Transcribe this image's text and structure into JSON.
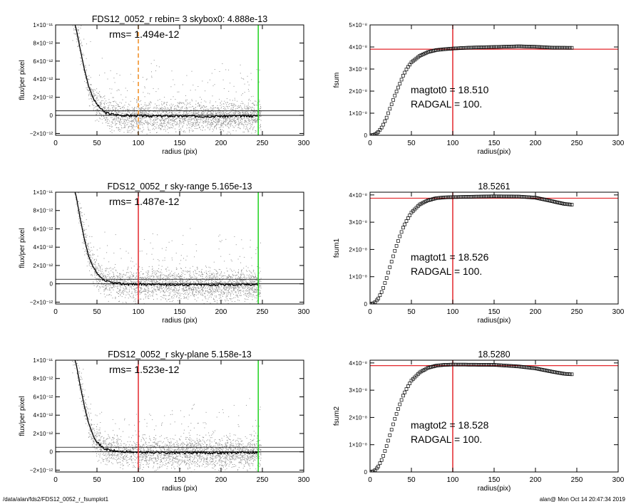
{
  "footer": {
    "path": "/data/alan/fds2/FDS12_0052_r_fsumplot1",
    "stamp": "alan@  Mon Oct 14 20:47:34 2019"
  },
  "colors": {
    "red": "#e3262b",
    "green": "#1fd21f",
    "orange": "#f08c1e",
    "scatter": "#8f8f8f"
  },
  "chart_data": [
    {
      "type": "scatter",
      "title": "FDS12_0052_r rebin= 3    skybox0:  4.888e-13",
      "annotation": "rms= 1.494e-12",
      "xlabel": "radius (pix)",
      "ylabel": "flux/per pixel",
      "xlim": [
        0,
        300
      ],
      "ylim": [
        -2.2e-12,
        1e-11
      ],
      "xticks": [
        "0",
        "50",
        "100",
        "150",
        "200",
        "250",
        "300"
      ],
      "yticks": [
        {
          "v": 1e-11,
          "label": "1×10⁻¹¹"
        },
        {
          "v": 8e-12,
          "label": "8×10⁻¹²"
        },
        {
          "v": 6e-12,
          "label": "6×10⁻¹²"
        },
        {
          "v": 4e-12,
          "label": "4×10⁻¹²"
        },
        {
          "v": 2e-12,
          "label": "2×10⁻¹²"
        },
        {
          "v": 0,
          "label": "0"
        },
        {
          "v": -2e-12,
          "label": "−2×10⁻¹²"
        }
      ],
      "vlines": [
        {
          "x": 100,
          "color": "orange",
          "dashed": true
        },
        {
          "x": 245,
          "color": "green"
        }
      ],
      "hlines": [
        0,
        5e-13
      ],
      "profile": [
        [
          22,
          1.05e-11
        ],
        [
          25,
          9.5e-12
        ],
        [
          30,
          7.2e-12
        ],
        [
          35,
          5e-12
        ],
        [
          40,
          3.2e-12
        ],
        [
          45,
          2e-12
        ],
        [
          50,
          1.2e-12
        ],
        [
          55,
          7e-13
        ],
        [
          60,
          3e-13
        ],
        [
          70,
          1e-13
        ],
        [
          80,
          0
        ],
        [
          100,
          -5e-14
        ],
        [
          150,
          -1e-13
        ],
        [
          200,
          -1e-13
        ],
        [
          245,
          -5e-14
        ]
      ]
    },
    {
      "type": "line",
      "title": "",
      "xlabel": "radius(pix)",
      "ylabel": "fsum",
      "annotations": [
        "magtot0 =  18.510",
        "RADGAL =    100."
      ],
      "xlim": [
        0,
        300
      ],
      "ylim": [
        0,
        5e-08
      ],
      "xticks": [
        "0",
        "50",
        "100",
        "150",
        "200",
        "250",
        "300"
      ],
      "yticks": [
        {
          "v": 0,
          "label": "0"
        },
        {
          "v": 1e-08,
          "label": "1×10⁻⁸"
        },
        {
          "v": 2e-08,
          "label": "2×10⁻⁸"
        },
        {
          "v": 3e-08,
          "label": "3×10⁻⁸"
        },
        {
          "v": 4e-08,
          "label": "4×10⁻⁸"
        },
        {
          "v": 5e-08,
          "label": "5×10⁻⁸"
        }
      ],
      "vline": 100,
      "hline": 3.9e-08,
      "curve": [
        [
          0,
          0
        ],
        [
          5,
          2e-10
        ],
        [
          10,
          1.5e-09
        ],
        [
          15,
          4e-09
        ],
        [
          20,
          8e-09
        ],
        [
          25,
          1.3e-08
        ],
        [
          30,
          1.8e-08
        ],
        [
          35,
          2.25e-08
        ],
        [
          40,
          2.7e-08
        ],
        [
          45,
          3.05e-08
        ],
        [
          50,
          3.3e-08
        ],
        [
          60,
          3.6e-08
        ],
        [
          70,
          3.77e-08
        ],
        [
          80,
          3.86e-08
        ],
        [
          90,
          3.9e-08
        ],
        [
          100,
          3.93e-08
        ],
        [
          120,
          3.97e-08
        ],
        [
          150,
          4e-08
        ],
        [
          180,
          4.03e-08
        ],
        [
          200,
          4.01e-08
        ],
        [
          220,
          3.97e-08
        ],
        [
          245,
          3.96e-08
        ]
      ]
    },
    {
      "type": "scatter",
      "title": "FDS12_0052_r sky-range  5.165e-13",
      "annotation": "rms= 1.487e-12",
      "xlabel": "radius (pix)",
      "ylabel": "flux/per pixel",
      "xlim": [
        0,
        300
      ],
      "ylim": [
        -2.2e-12,
        1e-11
      ],
      "xticks": [
        "0",
        "50",
        "100",
        "150",
        "200",
        "250",
        "300"
      ],
      "yticks": [
        {
          "v": 1e-11,
          "label": "1×10⁻¹¹"
        },
        {
          "v": 8e-12,
          "label": "8×10⁻¹²"
        },
        {
          "v": 6e-12,
          "label": "6×10⁻¹²"
        },
        {
          "v": 4e-12,
          "label": "4×10⁻¹²"
        },
        {
          "v": 2e-12,
          "label": "2×10⁻¹²"
        },
        {
          "v": 0,
          "label": "0"
        },
        {
          "v": -2e-12,
          "label": "−2×10⁻¹²"
        }
      ],
      "vlines": [
        {
          "x": 100,
          "color": "red"
        },
        {
          "x": 245,
          "color": "green"
        }
      ],
      "hlines": [
        0,
        5e-13
      ],
      "profile": [
        [
          22,
          1.05e-11
        ],
        [
          25,
          9.5e-12
        ],
        [
          30,
          7e-12
        ],
        [
          35,
          4.8e-12
        ],
        [
          40,
          3e-12
        ],
        [
          45,
          1.9e-12
        ],
        [
          50,
          1.1e-12
        ],
        [
          55,
          6e-13
        ],
        [
          60,
          3e-13
        ],
        [
          70,
          1e-13
        ],
        [
          80,
          0
        ],
        [
          100,
          -5e-14
        ],
        [
          150,
          -1e-13
        ],
        [
          200,
          -1e-13
        ],
        [
          245,
          -5e-14
        ]
      ]
    },
    {
      "type": "line",
      "title": "18.5261",
      "xlabel": "radius(pix)",
      "ylabel": "fsum1",
      "annotations": [
        "magtot1 =  18.526",
        "RADGAL =    100."
      ],
      "xlim": [
        0,
        300
      ],
      "ylim": [
        0,
        4.1e-08
      ],
      "xticks": [
        "0",
        "50",
        "100",
        "150",
        "200",
        "250",
        "300"
      ],
      "yticks": [
        {
          "v": 0,
          "label": "0"
        },
        {
          "v": 1e-08,
          "label": "1×10⁻⁸"
        },
        {
          "v": 2e-08,
          "label": "2×10⁻⁸"
        },
        {
          "v": 3e-08,
          "label": "3×10⁻⁸"
        },
        {
          "v": 4e-08,
          "label": "4×10⁻⁸"
        }
      ],
      "vline": 100,
      "hline": 3.88e-08,
      "curve": [
        [
          0,
          0
        ],
        [
          5,
          3e-10
        ],
        [
          10,
          2e-09
        ],
        [
          15,
          5e-09
        ],
        [
          20,
          9.5e-09
        ],
        [
          25,
          1.45e-08
        ],
        [
          30,
          1.95e-08
        ],
        [
          35,
          2.4e-08
        ],
        [
          40,
          2.8e-08
        ],
        [
          45,
          3.1e-08
        ],
        [
          50,
          3.35e-08
        ],
        [
          60,
          3.65e-08
        ],
        [
          70,
          3.8e-08
        ],
        [
          80,
          3.88e-08
        ],
        [
          90,
          3.91e-08
        ],
        [
          100,
          3.92e-08
        ],
        [
          150,
          3.95e-08
        ],
        [
          180,
          3.94e-08
        ],
        [
          200,
          3.9e-08
        ],
        [
          220,
          3.77e-08
        ],
        [
          235,
          3.67e-08
        ],
        [
          245,
          3.64e-08
        ]
      ]
    },
    {
      "type": "scatter",
      "title": "FDS12_0052_r sky-plane  5.158e-13",
      "annotation": "rms= 1.523e-12",
      "xlabel": "radius (pix)",
      "ylabel": "flux/per pixel",
      "xlim": [
        0,
        300
      ],
      "ylim": [
        -2.2e-12,
        1e-11
      ],
      "xticks": [
        "0",
        "50",
        "100",
        "150",
        "200",
        "250",
        "300"
      ],
      "yticks": [
        {
          "v": 1e-11,
          "label": "1×10⁻¹¹"
        },
        {
          "v": 8e-12,
          "label": "8×10⁻¹²"
        },
        {
          "v": 6e-12,
          "label": "6×10⁻¹²"
        },
        {
          "v": 4e-12,
          "label": "4×10⁻¹²"
        },
        {
          "v": 2e-12,
          "label": "2×10⁻¹²"
        },
        {
          "v": 0,
          "label": "0"
        },
        {
          "v": -2e-12,
          "label": "−2×10⁻¹²"
        }
      ],
      "vlines": [
        {
          "x": 100,
          "color": "red"
        },
        {
          "x": 245,
          "color": "green"
        }
      ],
      "hlines": [
        0,
        5e-13
      ],
      "profile": [
        [
          22,
          1.05e-11
        ],
        [
          25,
          9.5e-12
        ],
        [
          30,
          7.1e-12
        ],
        [
          35,
          4.9e-12
        ],
        [
          40,
          3.1e-12
        ],
        [
          45,
          1.9e-12
        ],
        [
          50,
          1.1e-12
        ],
        [
          55,
          6e-13
        ],
        [
          60,
          3e-13
        ],
        [
          70,
          1e-13
        ],
        [
          80,
          0
        ],
        [
          100,
          -5e-14
        ],
        [
          150,
          -1e-13
        ],
        [
          200,
          -1e-13
        ],
        [
          245,
          -5e-14
        ]
      ]
    },
    {
      "type": "line",
      "title": "18.5280",
      "xlabel": "radius(pix)",
      "ylabel": "fsum2",
      "annotations": [
        "magtot2 =  18.528",
        "RADGAL =    100."
      ],
      "xlim": [
        0,
        300
      ],
      "ylim": [
        0,
        4.1e-08
      ],
      "xticks": [
        "0",
        "50",
        "100",
        "150",
        "200",
        "250",
        "300"
      ],
      "yticks": [
        {
          "v": 0,
          "label": "0"
        },
        {
          "v": 1e-08,
          "label": "1×10⁻⁸"
        },
        {
          "v": 2e-08,
          "label": "2×10⁻⁸"
        },
        {
          "v": 3e-08,
          "label": "3×10⁻⁸"
        },
        {
          "v": 4e-08,
          "label": "4×10⁻⁸"
        }
      ],
      "vline": 100,
      "hline": 3.9e-08,
      "curve": [
        [
          0,
          0
        ],
        [
          5,
          3e-10
        ],
        [
          10,
          2e-09
        ],
        [
          15,
          5e-09
        ],
        [
          20,
          9.5e-09
        ],
        [
          25,
          1.45e-08
        ],
        [
          30,
          1.95e-08
        ],
        [
          35,
          2.4e-08
        ],
        [
          40,
          2.8e-08
        ],
        [
          45,
          3.1e-08
        ],
        [
          50,
          3.35e-08
        ],
        [
          60,
          3.65e-08
        ],
        [
          70,
          3.82e-08
        ],
        [
          80,
          3.9e-08
        ],
        [
          90,
          3.93e-08
        ],
        [
          100,
          3.94e-08
        ],
        [
          150,
          3.93e-08
        ],
        [
          180,
          3.87e-08
        ],
        [
          200,
          3.8e-08
        ],
        [
          220,
          3.68e-08
        ],
        [
          235,
          3.6e-08
        ],
        [
          245,
          3.58e-08
        ]
      ]
    }
  ]
}
